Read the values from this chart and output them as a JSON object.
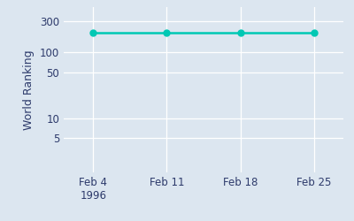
{
  "x_labels": [
    "Feb 4\n1996",
    "Feb 11",
    "Feb 18",
    "Feb 25"
  ],
  "x_values": [
    0,
    1,
    2,
    3
  ],
  "y_values": [
    200,
    200,
    200,
    200
  ],
  "line_color": "#00c8b4",
  "marker_color": "#00c8b4",
  "marker_size": 5,
  "line_width": 1.8,
  "ylabel": "World Ranking",
  "yticks": [
    5,
    10,
    50,
    100,
    300
  ],
  "ytick_labels": [
    "5",
    "10",
    "50",
    "100",
    "300"
  ],
  "ylim_log": [
    1.5,
    500
  ],
  "bg_color": "#dce6f0",
  "fig_bg_color": "#dce6f0"
}
